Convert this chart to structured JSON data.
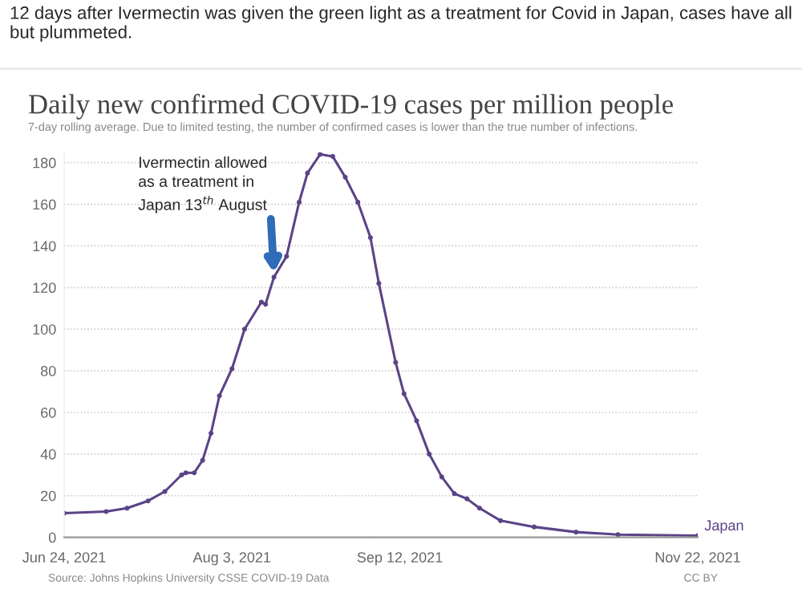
{
  "chart_data": {
    "type": "line",
    "title": "Daily new confirmed COVID-19 cases per million people",
    "subtitle": "7-day rolling average. Due to limited testing, the number of confirmed cases is lower than the true number of infections.",
    "x": [
      "2021-06-24",
      "2021-07-04",
      "2021-07-09",
      "2021-07-14",
      "2021-07-18",
      "2021-07-22",
      "2021-07-23",
      "2021-07-25",
      "2021-07-27",
      "2021-07-29",
      "2021-07-31",
      "2021-08-03",
      "2021-08-06",
      "2021-08-10",
      "2021-08-11",
      "2021-08-13",
      "2021-08-16",
      "2021-08-19",
      "2021-08-21",
      "2021-08-24",
      "2021-08-27",
      "2021-08-30",
      "2021-09-02",
      "2021-09-05",
      "2021-09-07",
      "2021-09-11",
      "2021-09-13",
      "2021-09-16",
      "2021-09-19",
      "2021-09-22",
      "2021-09-25",
      "2021-09-28",
      "2021-10-01",
      "2021-10-06",
      "2021-10-14",
      "2021-10-24",
      "2021-11-03",
      "2021-11-22"
    ],
    "series": [
      {
        "name": "Japan",
        "color": "#5b4386",
        "values": [
          11.6,
          12.4,
          14,
          17.5,
          22,
          30,
          31,
          31,
          37,
          50,
          68,
          81,
          100,
          113,
          112,
          125,
          135,
          161,
          175,
          184,
          183,
          173,
          161,
          144,
          122,
          84,
          69,
          56,
          40,
          29,
          21,
          18.5,
          14,
          8,
          5,
          2.5,
          1.3,
          0.8
        ]
      }
    ],
    "xlim": [
      "2021-06-24",
      "2021-11-22"
    ],
    "xticks": [
      {
        "value": "2021-06-24",
        "label": "Jun 24, 2021"
      },
      {
        "value": "2021-08-03",
        "label": "Aug 3, 2021"
      },
      {
        "value": "2021-09-12",
        "label": "Sep 12, 2021"
      },
      {
        "value": "2021-11-22",
        "label": "Nov 22, 2021"
      }
    ],
    "ylim": [
      0,
      185
    ],
    "yticks": [
      0,
      20,
      40,
      60,
      80,
      100,
      120,
      140,
      160,
      180
    ],
    "grid": "y",
    "marker": "circle",
    "line_style": "solid",
    "legend": false,
    "annotations": [
      "12 days after Ivermectin was given the green light as a treatment for Covid in Japan, cases have all but plummeted.",
      {
        "text": "Ivermectin allowed\nas a treatment in\nJapan 13$^{th}$ August",
        "x": "2021-08-13",
        "y": 127
      },
      "Source: Johns Hopkins University CSSE COVID-19 Data",
      "CC BY"
    ]
  }
}
